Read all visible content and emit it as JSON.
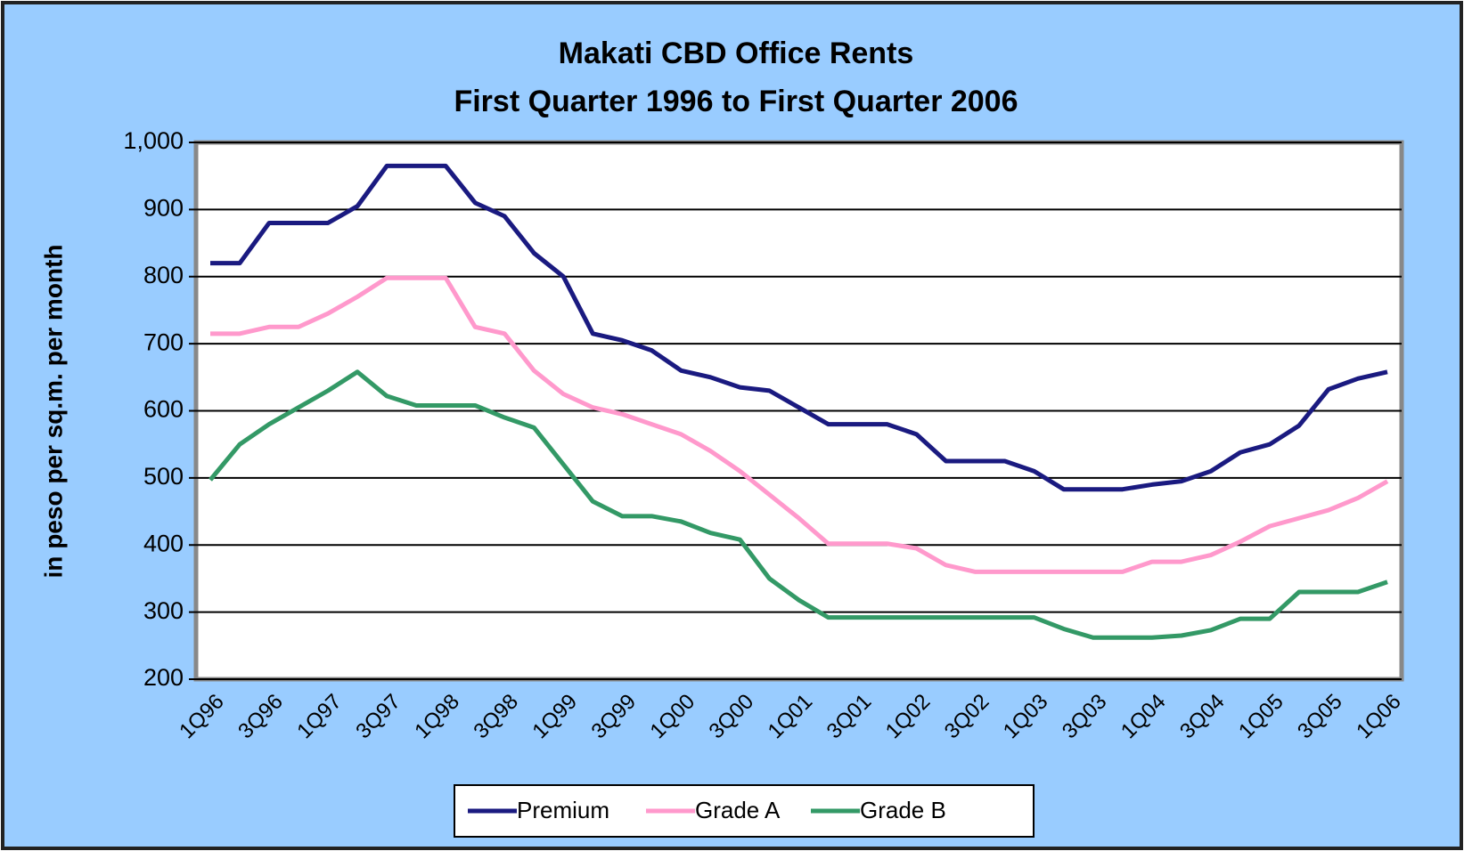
{
  "chart_data": {
    "type": "line",
    "title": "Makati CBD Office Rents",
    "subtitle": "First Quarter 1996 to First Quarter 2006",
    "y_label": "in peso per sq.m. per month",
    "categories": [
      "1Q96",
      null,
      "3Q96",
      null,
      "1Q97",
      null,
      "3Q97",
      null,
      "1Q98",
      null,
      "3Q98",
      null,
      "1Q99",
      null,
      "3Q99",
      null,
      "1Q00",
      null,
      "3Q00",
      null,
      "1Q01",
      null,
      "3Q01",
      null,
      "1Q02",
      null,
      "3Q02",
      null,
      "1Q03",
      null,
      "3Q03",
      null,
      "1Q04",
      null,
      "3Q04",
      null,
      "1Q05",
      null,
      "3Q05",
      null,
      "1Q06"
    ],
    "series": [
      {
        "name": "Premium",
        "color": "#1a1a80",
        "values": [
          820,
          820,
          880,
          880,
          880,
          905,
          965,
          965,
          965,
          910,
          890,
          835,
          800,
          715,
          705,
          690,
          660,
          650,
          635,
          630,
          605,
          580,
          580,
          580,
          565,
          525,
          525,
          525,
          510,
          483,
          483,
          483,
          490,
          495,
          510,
          538,
          550,
          578,
          632,
          648,
          658
        ]
      },
      {
        "name": "Grade A",
        "color": "#ff99cc",
        "values": [
          715,
          715,
          725,
          725,
          745,
          770,
          798,
          798,
          798,
          725,
          715,
          660,
          625,
          605,
          595,
          580,
          565,
          540,
          510,
          475,
          440,
          402,
          402,
          402,
          395,
          370,
          360,
          360,
          360,
          360,
          360,
          360,
          375,
          375,
          385,
          405,
          428,
          440,
          452,
          470,
          495
        ]
      },
      {
        "name": "Grade B",
        "color": "#339966",
        "values": [
          497,
          550,
          580,
          605,
          630,
          658,
          622,
          608,
          608,
          608,
          590,
          575,
          520,
          465,
          443,
          443,
          435,
          418,
          408,
          350,
          318,
          292,
          292,
          292,
          292,
          292,
          292,
          292,
          292,
          275,
          262,
          262,
          262,
          265,
          273,
          290,
          290,
          330,
          330,
          330,
          345
        ]
      }
    ],
    "ylim": [
      200,
      1000
    ],
    "yticks": [
      200,
      300,
      400,
      500,
      600,
      700,
      800,
      900,
      {
        "value": 1000,
        "label": "1,000"
      }
    ],
    "grid": true,
    "legend": "bottom"
  }
}
